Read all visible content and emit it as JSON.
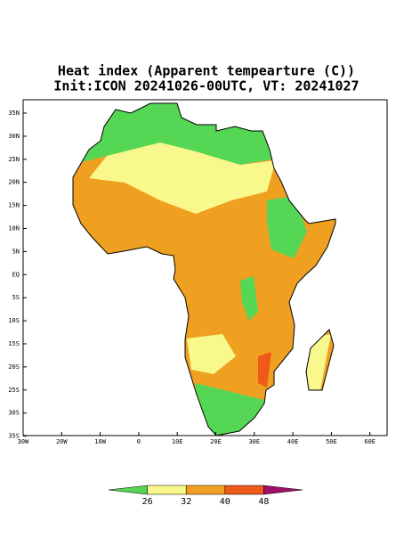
{
  "title": "Heat index (Apparent tempearture (C))",
  "subtitle": "Init:ICON 20241026-00UTC, VT: 20241027",
  "lat_labels": [
    "35N",
    "30N",
    "25N",
    "20N",
    "15N",
    "10N",
    "5N",
    "EQ",
    "5S",
    "10S",
    "15S",
    "20S",
    "25S",
    "30S",
    "35S"
  ],
  "lon_labels": [
    "30W",
    "20W",
    "10W",
    "0",
    "10E",
    "20E",
    "30E",
    "40E",
    "50E",
    "60E"
  ],
  "colorbar": {
    "levels": [
      26,
      32,
      40,
      48
    ],
    "colors": [
      "#55d655",
      "#f8f88c",
      "#f0a020",
      "#f05a18",
      "#a0106a"
    ]
  }
}
